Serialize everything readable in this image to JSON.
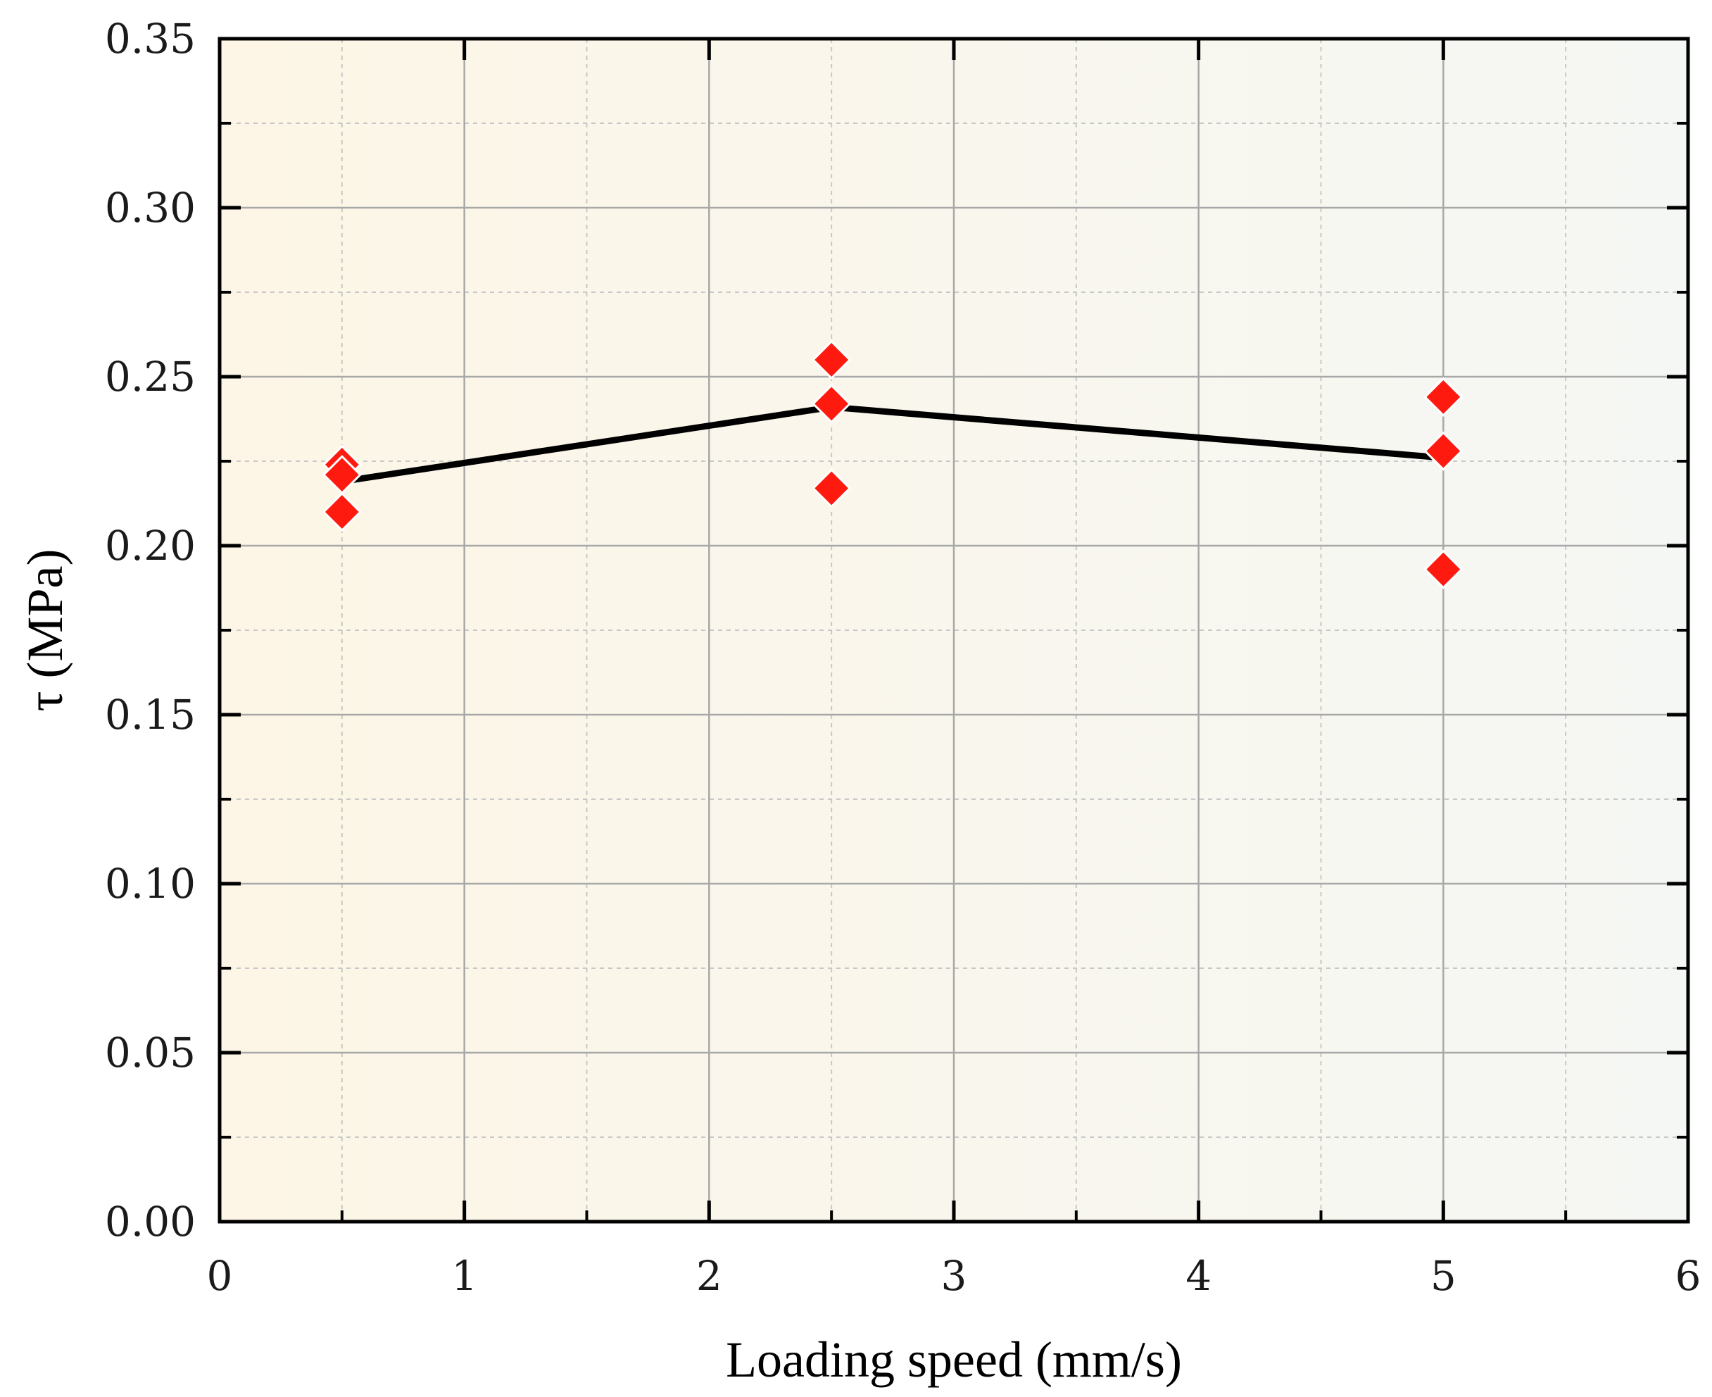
{
  "chart_data": {
    "type": "scatter",
    "xlabel": "Loading speed (mm/s)",
    "ylabel": "τ (MPa)",
    "xlim": [
      0,
      6
    ],
    "ylim": [
      0,
      0.35
    ],
    "x_ticks": [
      "0",
      "1",
      "2",
      "3",
      "4",
      "5",
      "6"
    ],
    "y_ticks": [
      "0.00",
      "0.05",
      "0.10",
      "0.15",
      "0.20",
      "0.25",
      "0.30",
      "0.35"
    ],
    "grid": true,
    "series": [
      {
        "marker": "diamond",
        "color": "#ff1a10",
        "points": [
          {
            "x": 0.5,
            "y": 0.224
          },
          {
            "x": 0.5,
            "y": 0.221
          },
          {
            "x": 0.5,
            "y": 0.21
          },
          {
            "x": 2.5,
            "y": 0.255
          },
          {
            "x": 2.5,
            "y": 0.242
          },
          {
            "x": 2.5,
            "y": 0.217
          },
          {
            "x": 5.0,
            "y": 0.244
          },
          {
            "x": 5.0,
            "y": 0.228
          },
          {
            "x": 5.0,
            "y": 0.193
          }
        ]
      },
      {
        "marker": "none",
        "line": true,
        "color": "#000000",
        "points": [
          {
            "x": 0.5,
            "y": 0.219
          },
          {
            "x": 2.5,
            "y": 0.241
          },
          {
            "x": 5.0,
            "y": 0.226
          }
        ]
      }
    ]
  }
}
